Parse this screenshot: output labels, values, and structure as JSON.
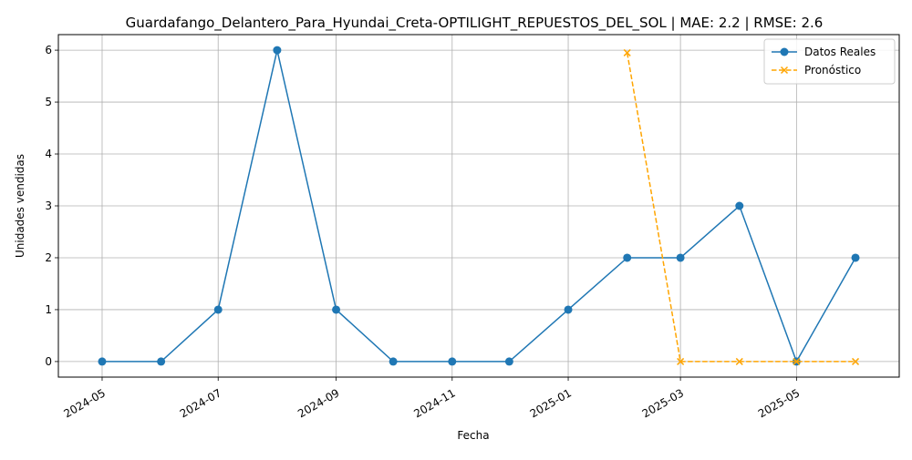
{
  "chart_data": {
    "type": "line",
    "title": "Guardafango_Delantero_Para_Hyundai_Creta-OPTILIGHT_REPUESTOS_DEL_SOL | MAE: 2.2 | RMSE: 2.6",
    "xlabel": "Fecha",
    "ylabel": "Unidades vendidas",
    "xlim": [
      "2024-04-08",
      "2025-06-24"
    ],
    "ylim": [
      -0.3,
      6.3
    ],
    "x_ticks": [
      "2024-05",
      "2024-07",
      "2024-09",
      "2024-11",
      "2025-01",
      "2025-03",
      "2025-05"
    ],
    "y_ticks": [
      "0",
      "1",
      "2",
      "3",
      "4",
      "5",
      "6"
    ],
    "grid": true,
    "legend_position": "top-right",
    "series": [
      {
        "name": "Datos Reales",
        "color": "#1f77b4",
        "marker": "circle",
        "line_style": "solid",
        "x": [
          "2024-05-01",
          "2024-06-01",
          "2024-07-01",
          "2024-08-01",
          "2024-09-01",
          "2024-10-01",
          "2024-11-01",
          "2024-12-01",
          "2025-01-01",
          "2025-02-01",
          "2025-03-01",
          "2025-04-01",
          "2025-05-01",
          "2025-06-01"
        ],
        "y": [
          0,
          0,
          1,
          6,
          1,
          0,
          0,
          0,
          1,
          2,
          2,
          3,
          0,
          2
        ]
      },
      {
        "name": "Pronóstico",
        "color": "#ffa500",
        "marker": "x",
        "line_style": "dashed",
        "x": [
          "2025-02-01",
          "2025-03-01",
          "2025-04-01",
          "2025-05-01",
          "2025-06-01"
        ],
        "y": [
          5.95,
          0,
          0,
          0,
          0
        ]
      }
    ]
  }
}
